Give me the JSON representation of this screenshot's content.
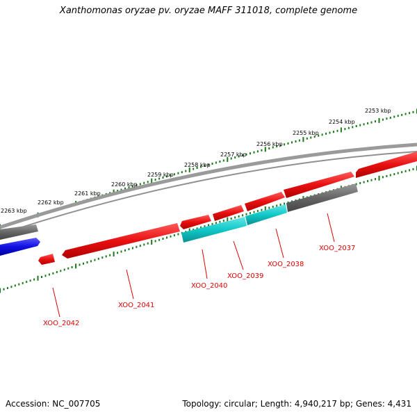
{
  "title": "Xanthomonas oryzae pv. oryzae MAFF 311018, complete genome",
  "footer": {
    "accession": "Accession: NC_007705",
    "summary": "Topology: circular; Length: 4,940,217 bp; Genes: 4,431"
  },
  "colors": {
    "backbone": "#808080",
    "gene_red": "#e81010",
    "gene_cyan": "#10c8c8",
    "gene_gray": "#666666",
    "gene_blue": "#1010e0",
    "ticks": "#1a7a1a",
    "label_text": "#e00000"
  },
  "scale_labels": [
    "2253 kbp",
    "2254 kbp",
    "2255 kbp",
    "2256 kbp",
    "2257 kbp",
    "2258 kbp",
    "2259 kbp",
    "2260 kbp",
    "2261 kbp",
    "2262 kbp",
    "2263 kbp"
  ],
  "gene_labels": [
    "XOO_2037",
    "XOO_2038",
    "XOO_2039",
    "XOO_2040",
    "XOO_2041",
    "XOO_2042"
  ]
}
